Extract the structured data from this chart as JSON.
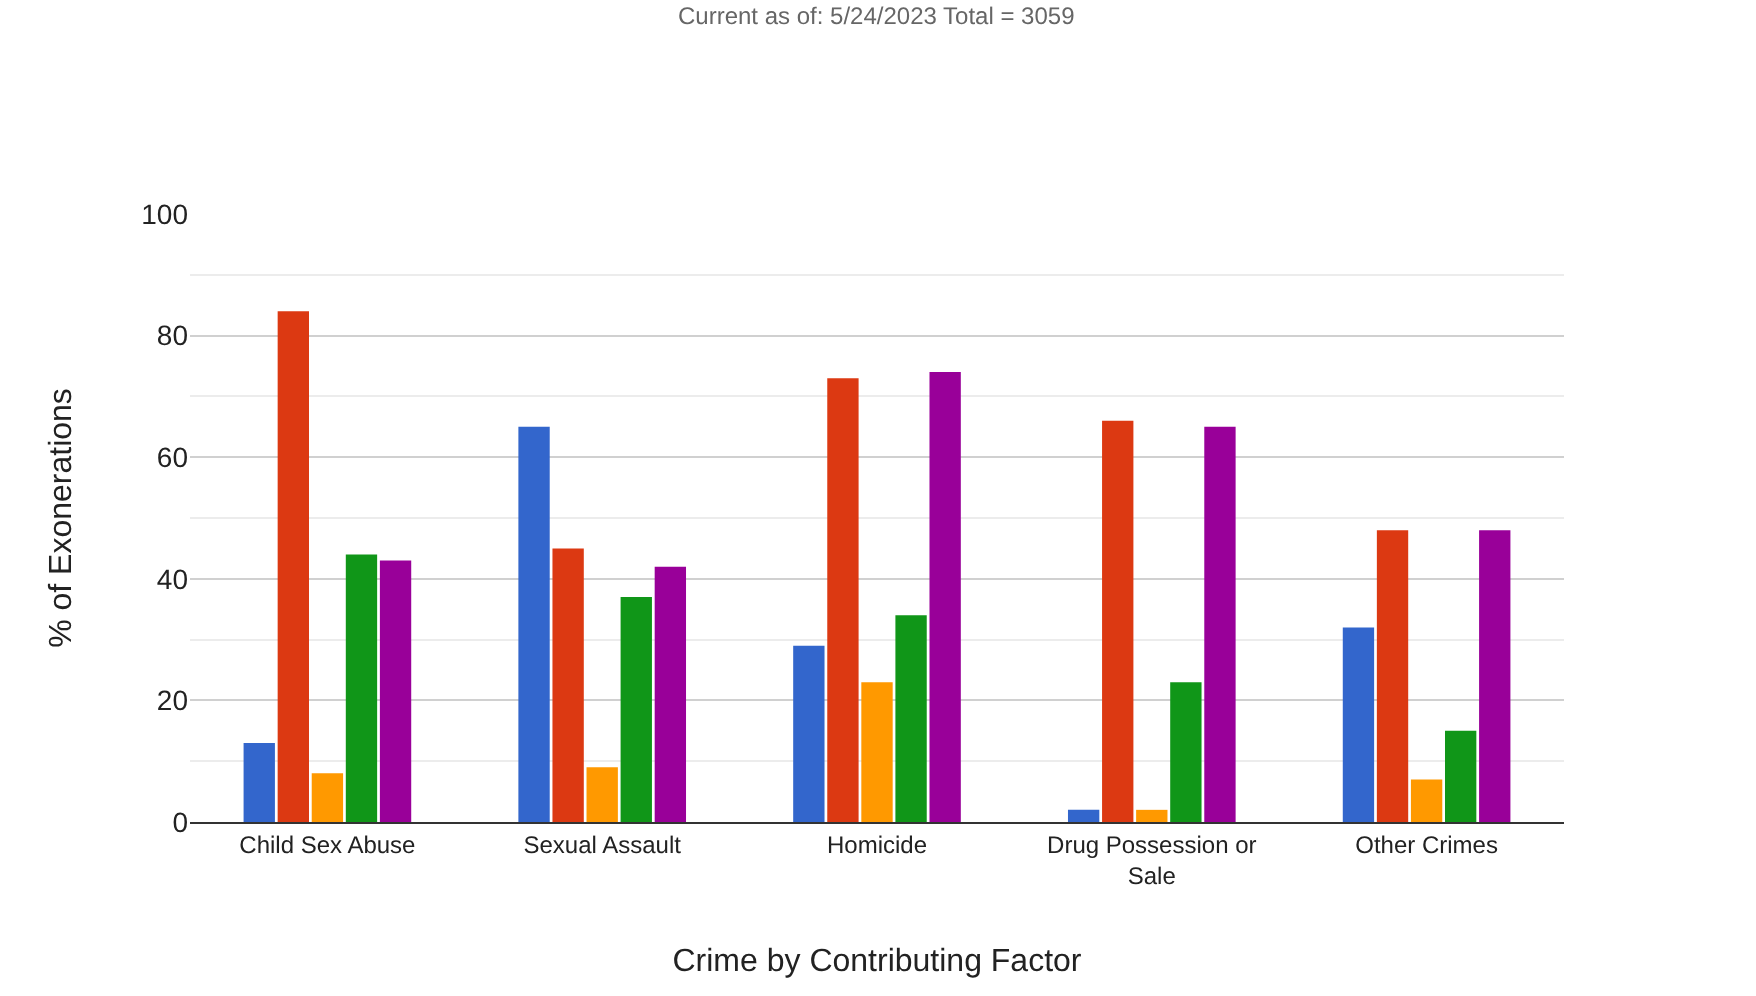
{
  "chart_data": {
    "type": "bar",
    "annotations": [
      "Current as of: 5/24/2023 Total = 3059"
    ],
    "xlabel": "Crime by Contributing Factor",
    "ylabel": "% of Exonerations",
    "categories": [
      "Child Sex Abuse",
      "Sexual Assault",
      "Homicide",
      "Drug Possession or Sale",
      "Other Crimes"
    ],
    "series": [
      {
        "color": "#3366cc",
        "values": [
          13,
          65,
          29,
          2,
          32
        ]
      },
      {
        "color": "#dc3912",
        "values": [
          84,
          45,
          73,
          66,
          48
        ]
      },
      {
        "color": "#ff9900",
        "values": [
          8,
          9,
          23,
          2,
          7
        ]
      },
      {
        "color": "#109618",
        "values": [
          44,
          37,
          34,
          23,
          15
        ]
      },
      {
        "color": "#990099",
        "values": [
          43,
          42,
          74,
          65,
          48
        ]
      }
    ],
    "ylim": [
      0,
      100
    ],
    "yticks": [
      0,
      20,
      40,
      60,
      80,
      100
    ],
    "grid": "y",
    "legend": false
  }
}
